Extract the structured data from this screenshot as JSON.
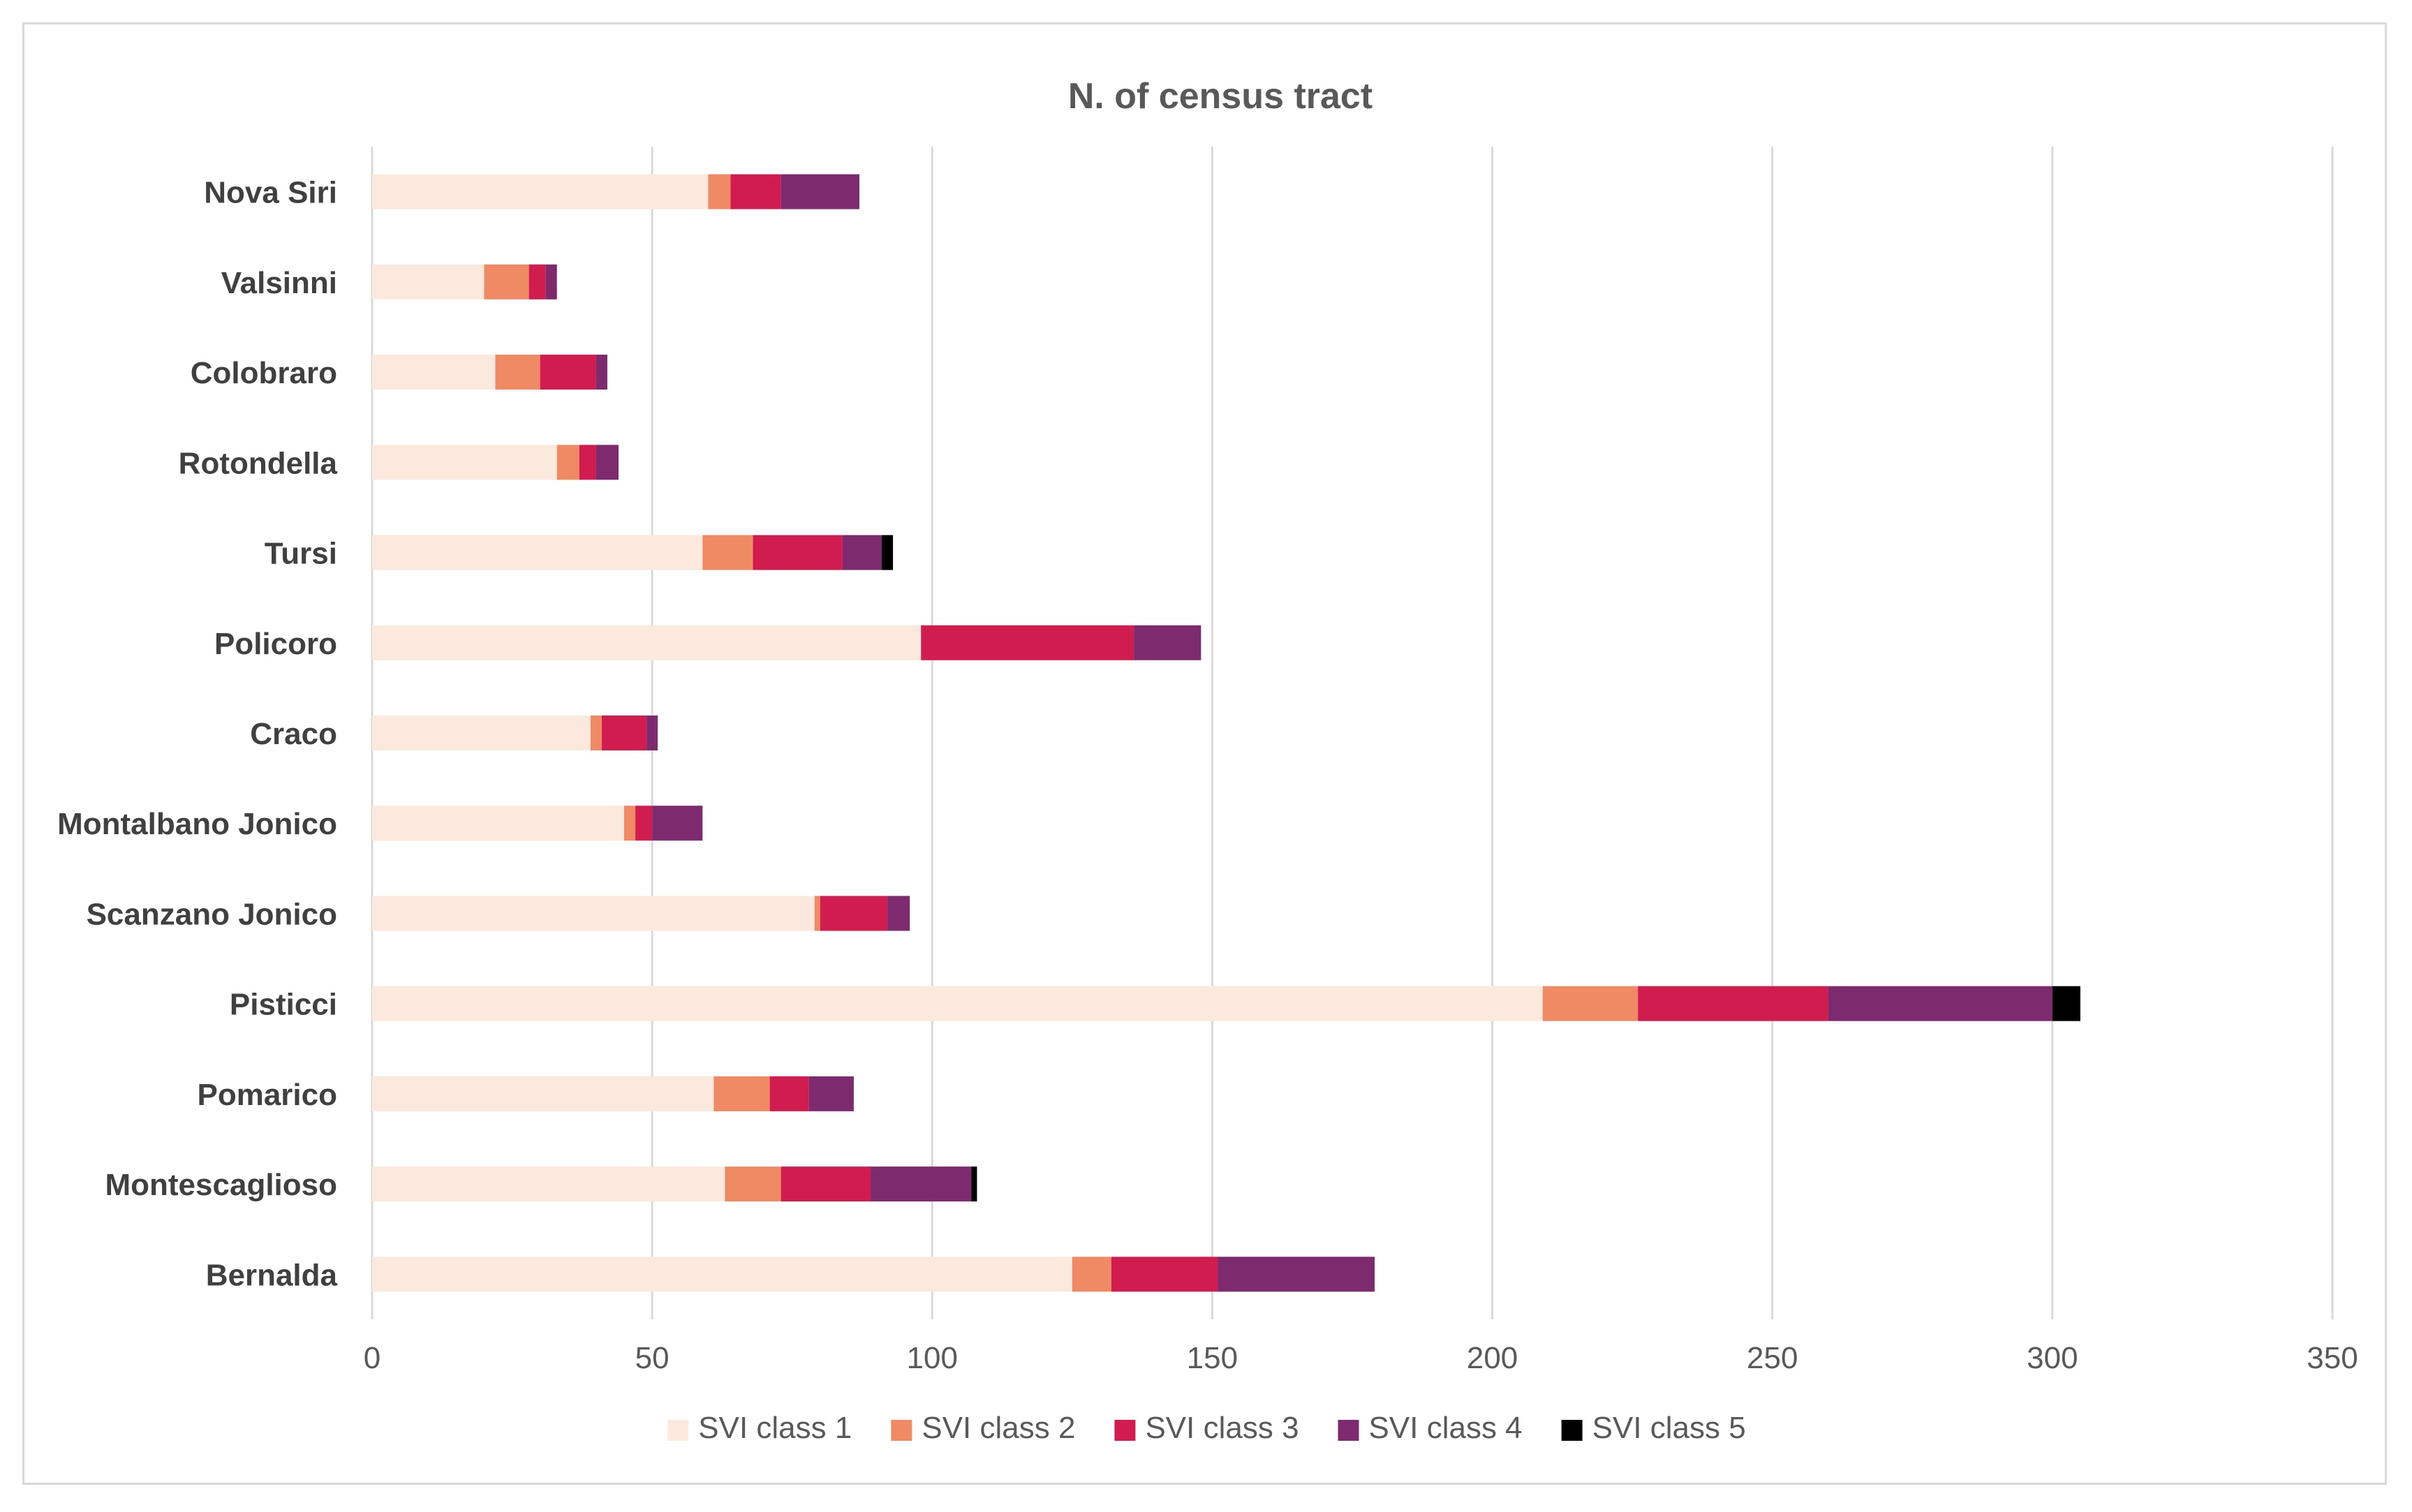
{
  "chart_data": {
    "type": "bar",
    "orientation": "horizontal",
    "stacked": true,
    "title": "N. of census tract",
    "xlabel": "",
    "ylabel": "",
    "xlim": [
      0,
      350
    ],
    "x_ticks": [
      0,
      50,
      100,
      150,
      200,
      250,
      300,
      350
    ],
    "grid": true,
    "legend_position": "bottom",
    "categories": [
      "Nova Siri",
      "Valsinni",
      "Colobraro",
      "Rotondella",
      "Tursi",
      "Policoro",
      "Craco",
      "Montalbano Jonico",
      "Scanzano Jonico",
      "Pisticci",
      "Pomarico",
      "Montescaglioso",
      "Bernalda"
    ],
    "series": [
      {
        "name": "SVI class 1",
        "color": "#fbe9dd",
        "values": [
          60,
          20,
          22,
          33,
          59,
          98,
          39,
          45,
          79,
          209,
          61,
          63,
          125
        ]
      },
      {
        "name": "SVI class 2",
        "color": "#f08a64",
        "values": [
          4,
          8,
          8,
          4,
          9,
          0,
          2,
          2,
          1,
          17,
          10,
          10,
          7
        ]
      },
      {
        "name": "SVI class 3",
        "color": "#d01c4e",
        "values": [
          9,
          3,
          10,
          3,
          16,
          38,
          8,
          3,
          12,
          34,
          7,
          16,
          19
        ]
      },
      {
        "name": "SVI class 4",
        "color": "#7e2a6e",
        "values": [
          14,
          2,
          2,
          4,
          7,
          12,
          2,
          9,
          4,
          40,
          8,
          18,
          28
        ]
      },
      {
        "name": "SVI class 5",
        "color": "#000000",
        "values": [
          0,
          0,
          0,
          0,
          2,
          0,
          0,
          0,
          0,
          5,
          0,
          1,
          0
        ]
      }
    ]
  }
}
